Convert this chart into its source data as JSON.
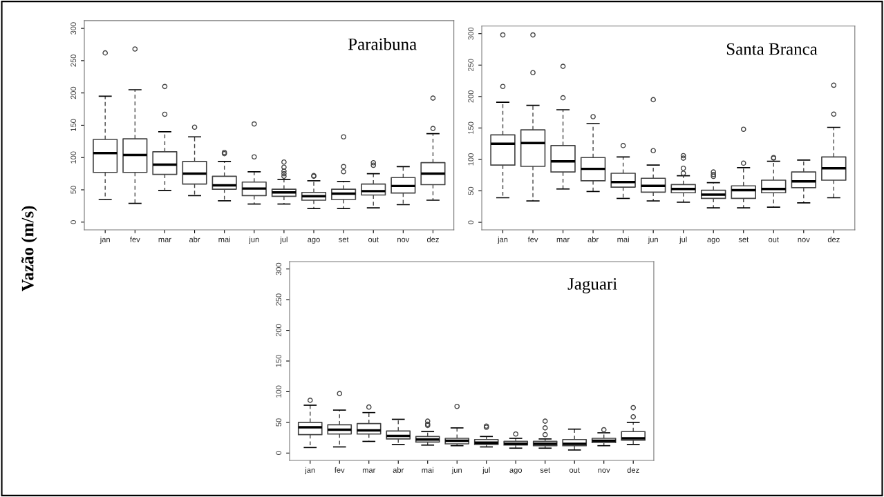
{
  "chart_data": [
    {
      "type": "box",
      "title": "Paraibuna",
      "ylabel": "Vazão (m/s)",
      "ylim": [
        -12,
        312
      ],
      "yticks": [
        0,
        50,
        100,
        150,
        200,
        250,
        300
      ],
      "categories": [
        "jan",
        "fev",
        "mar",
        "abr",
        "mai",
        "jun",
        "jul",
        "ago",
        "set",
        "out",
        "nov",
        "dez"
      ],
      "boxes": [
        {
          "low": 35,
          "q1": 77,
          "median": 107,
          "q3": 128,
          "high": 195,
          "outliers": [
            262
          ]
        },
        {
          "low": 29,
          "q1": 77,
          "median": 104,
          "q3": 129,
          "high": 205,
          "outliers": [
            268
          ]
        },
        {
          "low": 49,
          "q1": 74,
          "median": 89,
          "q3": 109,
          "high": 140,
          "outliers": [
            167,
            210
          ]
        },
        {
          "low": 41,
          "q1": 59,
          "median": 75,
          "q3": 94,
          "high": 132,
          "outliers": [
            147
          ]
        },
        {
          "low": 33,
          "q1": 51,
          "median": 57,
          "q3": 71,
          "high": 94,
          "outliers": [
            106,
            108
          ]
        },
        {
          "low": 28,
          "q1": 41,
          "median": 52,
          "q3": 62,
          "high": 78,
          "outliers": [
            101,
            152
          ]
        },
        {
          "low": 28,
          "q1": 40,
          "median": 46,
          "q3": 51,
          "high": 66,
          "outliers": [
            71,
            75,
            79,
            85,
            93
          ]
        },
        {
          "low": 21,
          "q1": 34,
          "median": 40,
          "q3": 46,
          "high": 64,
          "outliers": [
            71,
            72
          ]
        },
        {
          "low": 21,
          "q1": 35,
          "median": 44,
          "q3": 51,
          "high": 63,
          "outliers": [
            78,
            86,
            132
          ]
        },
        {
          "low": 22,
          "q1": 42,
          "median": 48,
          "q3": 59,
          "high": 75,
          "outliers": [
            88,
            92
          ]
        },
        {
          "low": 27,
          "q1": 45,
          "median": 56,
          "q3": 69,
          "high": 86
        },
        {
          "low": 34,
          "q1": 58,
          "median": 75,
          "q3": 92,
          "high": 137,
          "outliers": [
            145,
            192
          ]
        }
      ]
    },
    {
      "type": "box",
      "title": "Santa Branca",
      "ylim": [
        -12,
        312
      ],
      "yticks": [
        0,
        50,
        100,
        150,
        200,
        250,
        300
      ],
      "categories": [
        "jan",
        "fev",
        "mar",
        "abr",
        "mai",
        "jun",
        "jul",
        "ago",
        "set",
        "out",
        "nov",
        "dez"
      ],
      "boxes": [
        {
          "low": 39,
          "q1": 91,
          "median": 125,
          "q3": 139,
          "high": 191,
          "outliers": [
            216,
            298
          ]
        },
        {
          "low": 34,
          "q1": 89,
          "median": 126,
          "q3": 147,
          "high": 186,
          "outliers": [
            238,
            298
          ]
        },
        {
          "low": 53,
          "q1": 80,
          "median": 97,
          "q3": 122,
          "high": 179,
          "outliers": [
            198,
            248
          ]
        },
        {
          "low": 49,
          "q1": 66,
          "median": 85,
          "q3": 103,
          "high": 157,
          "outliers": [
            168
          ]
        },
        {
          "low": 38,
          "q1": 56,
          "median": 64,
          "q3": 78,
          "high": 104,
          "outliers": [
            122
          ]
        },
        {
          "low": 34,
          "q1": 48,
          "median": 58,
          "q3": 70,
          "high": 91,
          "outliers": [
            114,
            195
          ]
        },
        {
          "low": 32,
          "q1": 47,
          "median": 53,
          "q3": 60,
          "high": 74,
          "outliers": [
            78,
            86,
            102,
            106
          ]
        },
        {
          "low": 23,
          "q1": 38,
          "median": 44,
          "q3": 51,
          "high": 63,
          "outliers": [
            73,
            76,
            80
          ]
        },
        {
          "low": 23,
          "q1": 38,
          "median": 51,
          "q3": 58,
          "high": 87,
          "outliers": [
            94,
            148
          ]
        },
        {
          "low": 24,
          "q1": 47,
          "median": 53,
          "q3": 67,
          "high": 97,
          "outliers": [
            102,
            103
          ]
        },
        {
          "low": 31,
          "q1": 55,
          "median": 65,
          "q3": 80,
          "high": 99
        },
        {
          "low": 39,
          "q1": 67,
          "median": 86,
          "q3": 104,
          "high": 151,
          "outliers": [
            172,
            218
          ]
        }
      ]
    },
    {
      "type": "box",
      "title": "Jaguari",
      "ylim": [
        -12,
        312
      ],
      "yticks": [
        0,
        50,
        100,
        150,
        200,
        250,
        300
      ],
      "categories": [
        "jan",
        "fev",
        "mar",
        "abr",
        "mai",
        "jun",
        "jul",
        "ago",
        "set",
        "out",
        "nov",
        "dez"
      ],
      "boxes": [
        {
          "low": 9,
          "q1": 30,
          "median": 42,
          "q3": 50,
          "high": 78,
          "outliers": [
            86
          ]
        },
        {
          "low": 10,
          "q1": 31,
          "median": 38,
          "q3": 46,
          "high": 70,
          "outliers": [
            97
          ]
        },
        {
          "low": 19,
          "q1": 31,
          "median": 37,
          "q3": 48,
          "high": 66,
          "outliers": [
            75
          ]
        },
        {
          "low": 14,
          "q1": 23,
          "median": 28,
          "q3": 36,
          "high": 55
        },
        {
          "low": 13,
          "q1": 18,
          "median": 22,
          "q3": 27,
          "high": 35,
          "outliers": [
            45,
            47,
            52
          ]
        },
        {
          "low": 12,
          "q1": 15,
          "median": 20,
          "q3": 24,
          "high": 41,
          "outliers": [
            76
          ]
        },
        {
          "low": 10,
          "q1": 14,
          "median": 17,
          "q3": 22,
          "high": 27,
          "outliers": [
            42,
            44
          ]
        },
        {
          "low": 8,
          "q1": 13,
          "median": 15,
          "q3": 19,
          "high": 24,
          "outliers": [
            31
          ]
        },
        {
          "low": 8,
          "q1": 12,
          "median": 15,
          "q3": 19,
          "high": 23,
          "outliers": [
            30,
            41,
            52
          ]
        },
        {
          "low": 5,
          "q1": 12,
          "median": 15,
          "q3": 22,
          "high": 39
        },
        {
          "low": 12,
          "q1": 17,
          "median": 20,
          "q3": 24,
          "high": 33,
          "outliers": [
            38
          ]
        },
        {
          "low": 14,
          "q1": 21,
          "median": 24,
          "q3": 35,
          "high": 50,
          "outliers": [
            59,
            74
          ]
        }
      ]
    }
  ]
}
